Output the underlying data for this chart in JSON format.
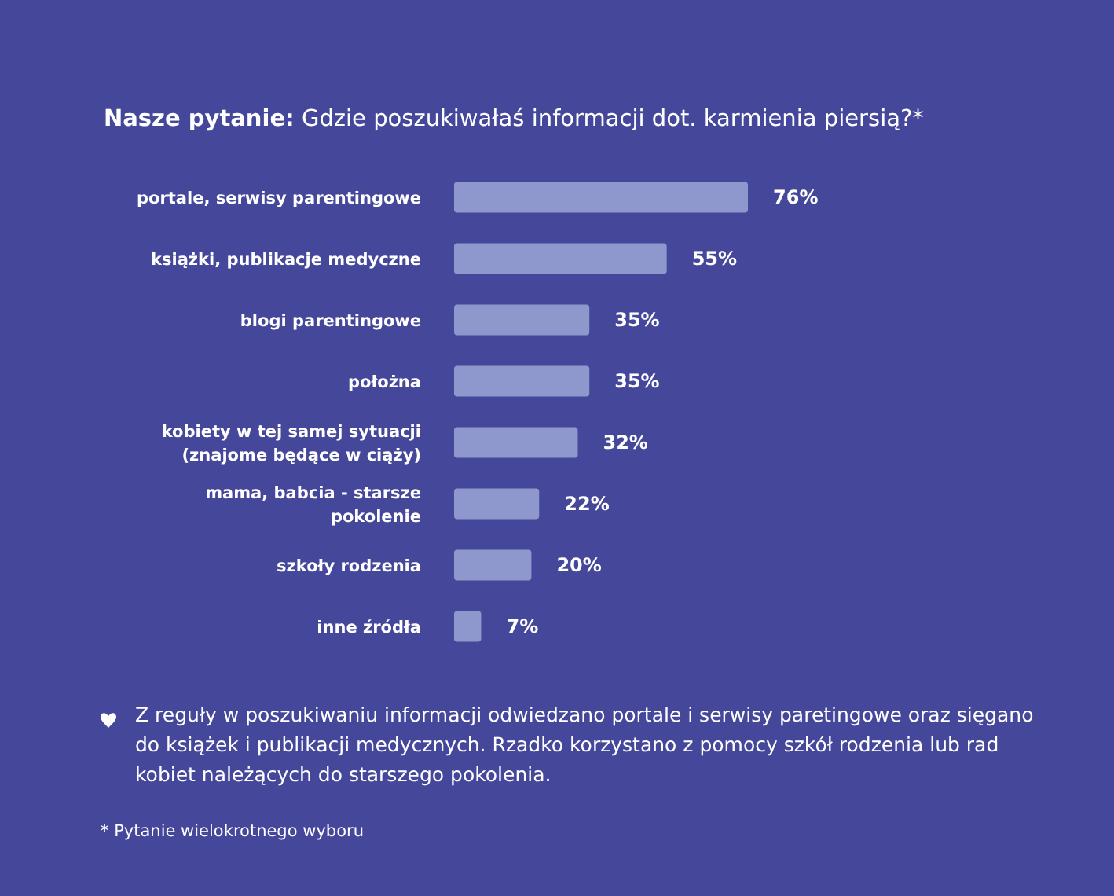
{
  "chart_data": {
    "type": "bar",
    "orientation": "horizontal",
    "title": "Nasze pytanie:",
    "subtitle": "Gdzie poszukiwałaś informacji dot. karmienia piersią?*",
    "categories": [
      "portale, serwisy parentingowe",
      "książki, publikacje medyczne",
      "blogi parentingowe",
      "położna",
      "kobiety w tej samej sytuacji (znajome będące w ciąży)",
      "mama, babcia - starsze pokolenie",
      "szkoły rodzenia",
      "inne źródła"
    ],
    "values": [
      76,
      55,
      35,
      35,
      32,
      22,
      20,
      7
    ],
    "value_labels": [
      "76%",
      "55%",
      "35%",
      "35%",
      "32%",
      "22%",
      "20%",
      "7%"
    ],
    "color": "#8f98cc",
    "annotations": [
      "Z reguły w poszukiwaniu informacji odwiedzano portale i serwisy paretingowe oraz sięgano do książek i publikacji medycznych. Rzadko korzystano z pomocy szkół rodzenia lub rad kobiet należących do starszego pokolenia.",
      "* Pytanie wielokrotnego wyboru"
    ]
  }
}
